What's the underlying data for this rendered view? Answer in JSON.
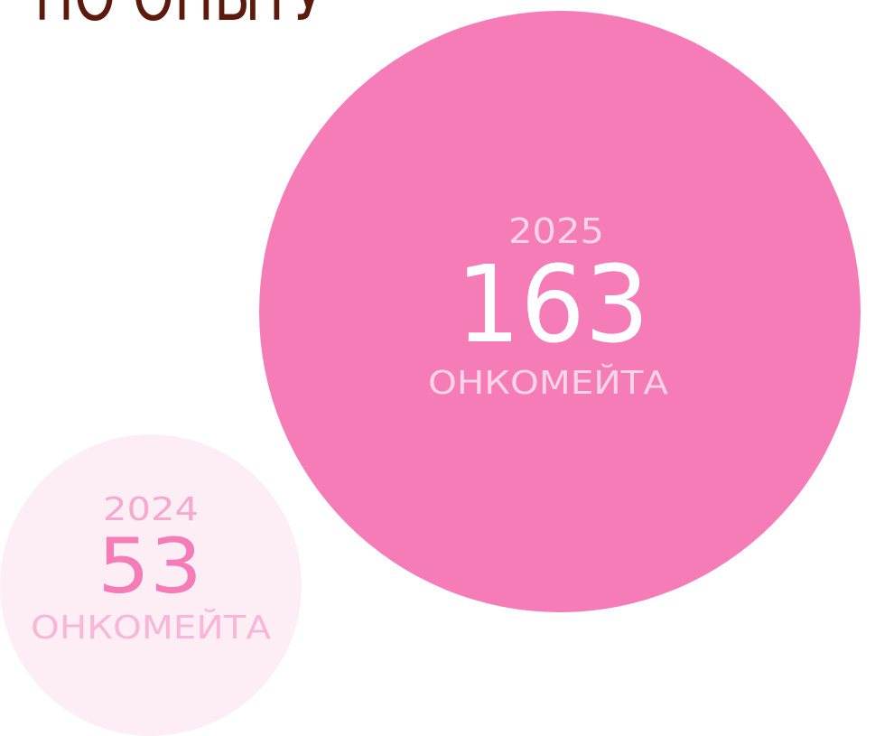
{
  "heading": "ПО ОПЫТУ",
  "circles": [
    {
      "year": "2025",
      "value": "163",
      "unit": "ОНКОМЕЙТА"
    },
    {
      "year": "2024",
      "value": "53",
      "unit": "ОНКОМЕЙТА"
    }
  ]
}
